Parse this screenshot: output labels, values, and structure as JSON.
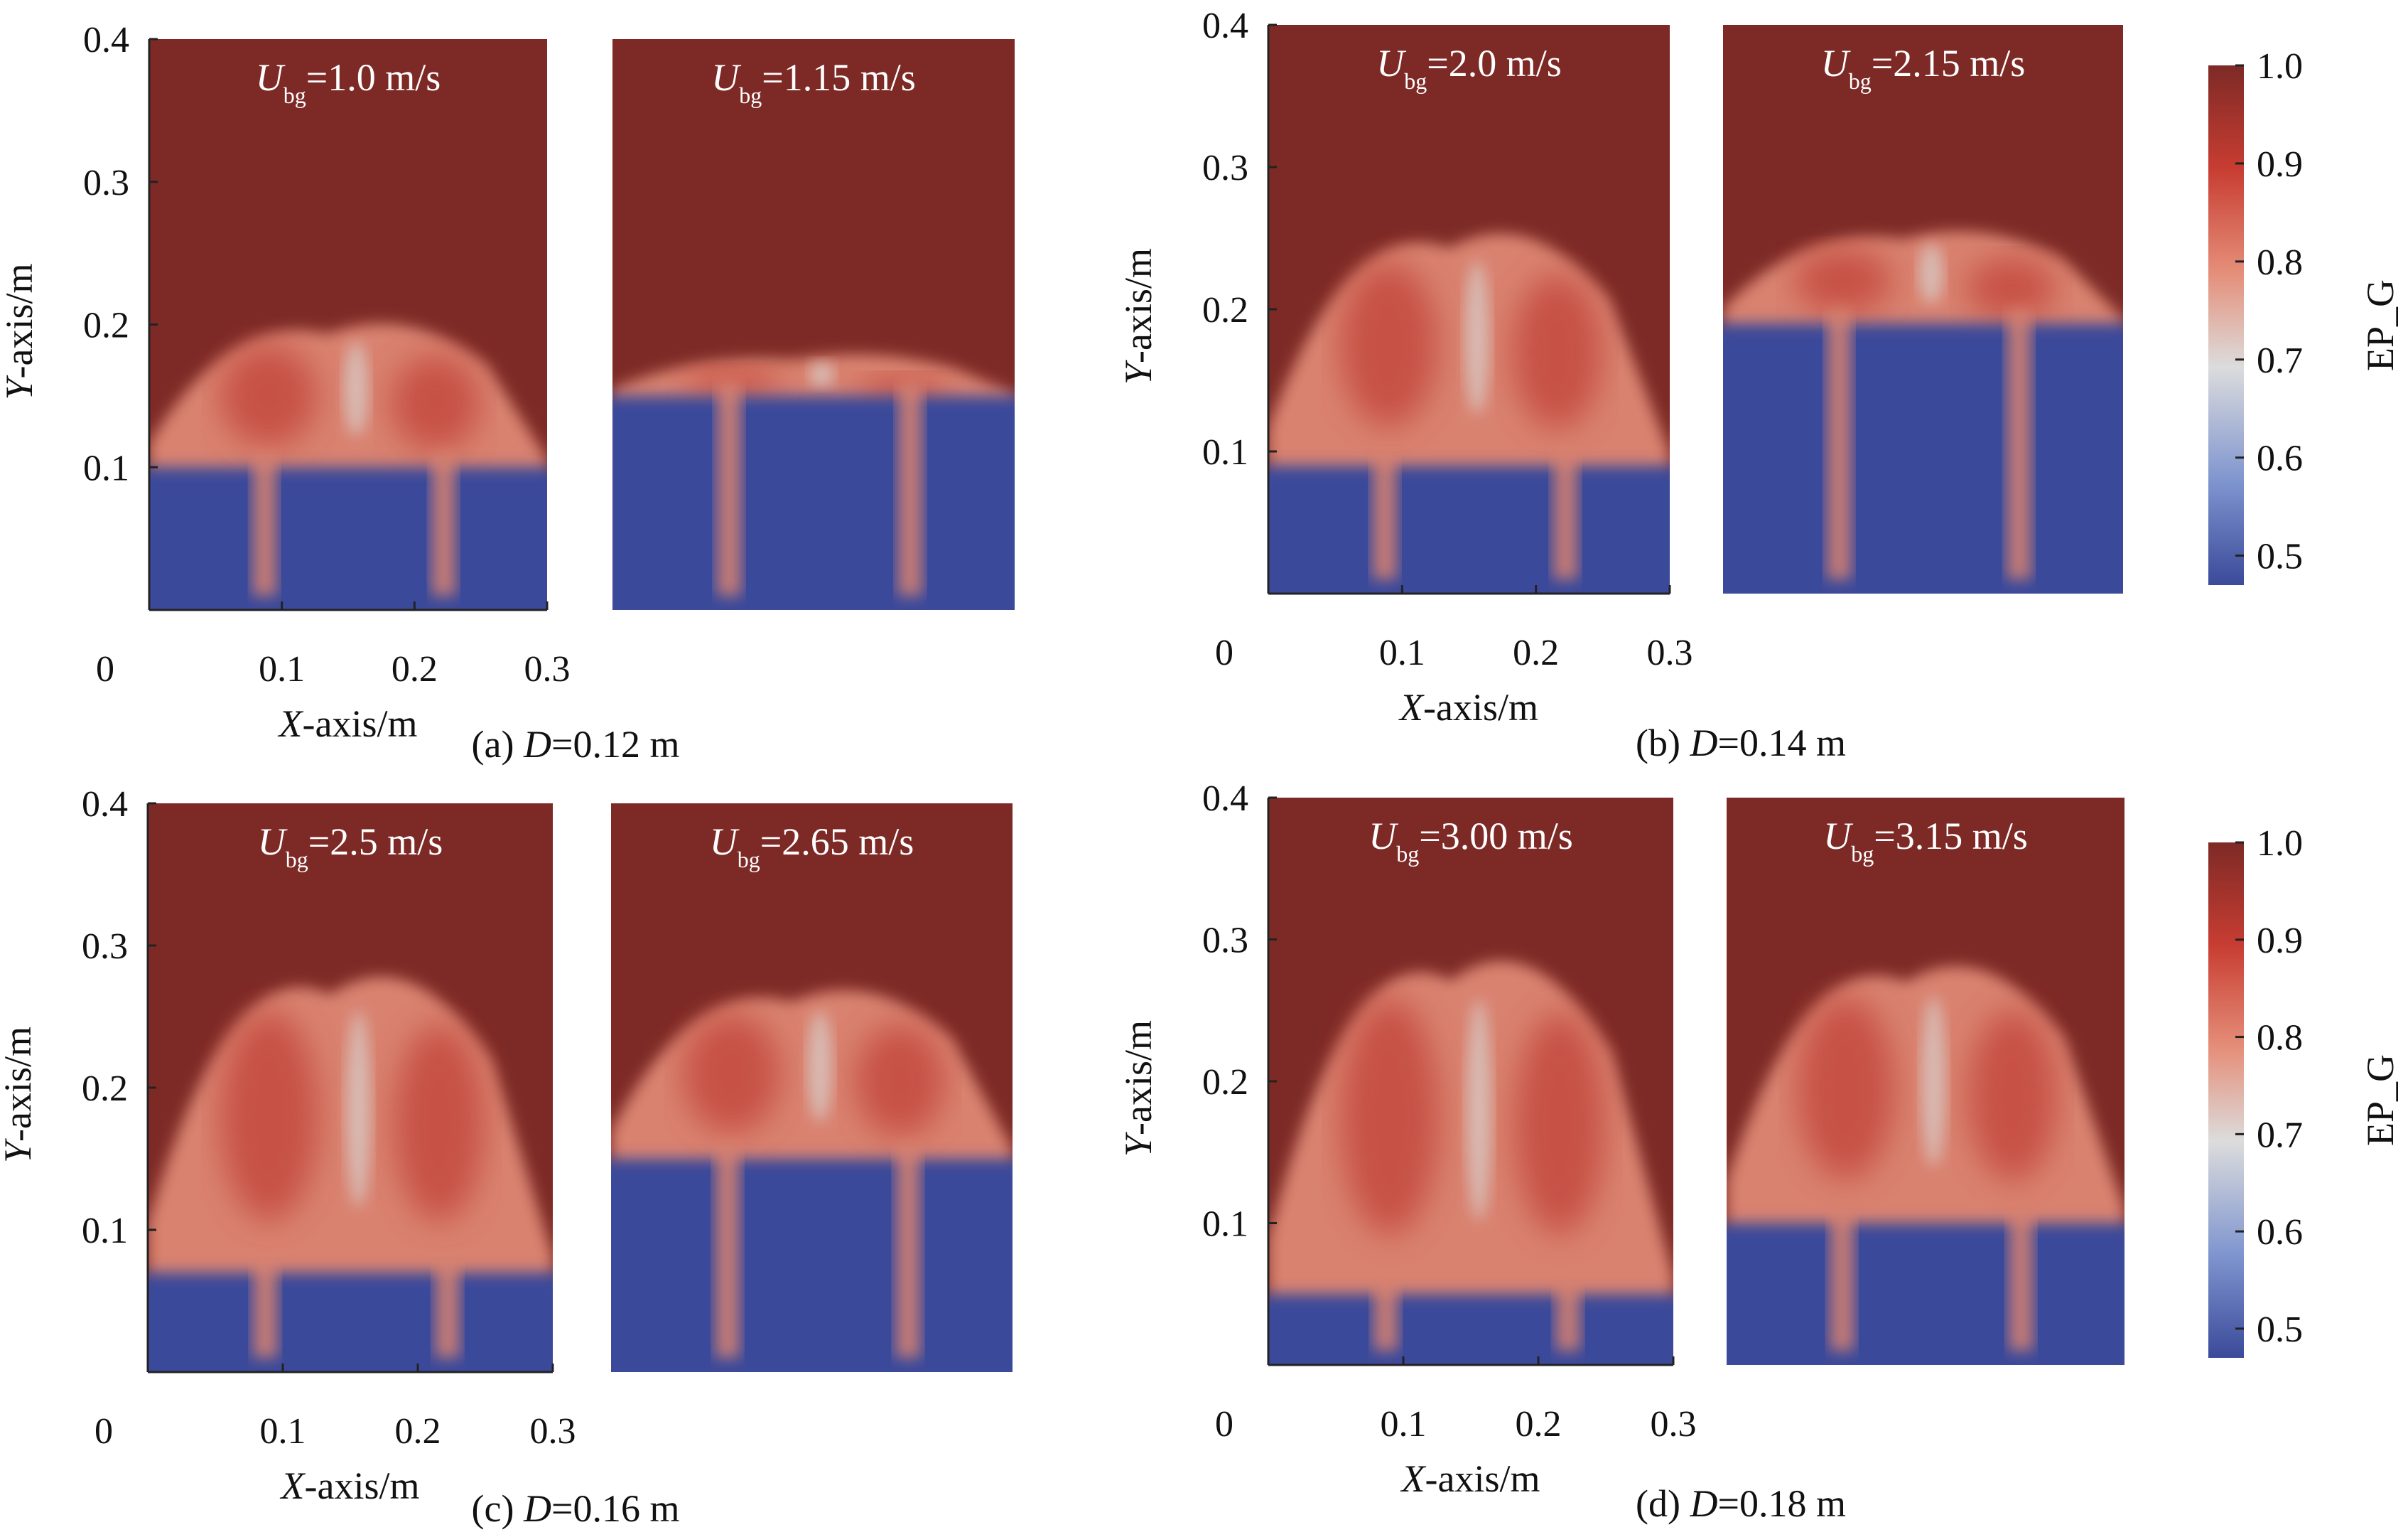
{
  "colorbar": {
    "label": "EP_G",
    "min": 0.47,
    "max": 1.0,
    "ticks": [
      "1.0",
      "0.9",
      "0.8",
      "0.7",
      "0.6",
      "0.5"
    ],
    "colors": [
      "#3b4a9a",
      "#7f95cf",
      "#dcdcdc",
      "#e58f7a",
      "#c83d32",
      "#7d2a26"
    ]
  },
  "axis_text": {
    "x_label_italic": "X",
    "y_label_italic": "Y",
    "label_suffix": "-axis/m",
    "u_symbol": "U",
    "u_subscript": "bg"
  },
  "chart_data": [
    {
      "type": "heatmap",
      "caption_prefix": "(a) ",
      "caption_var": "D",
      "caption_value": "=0.12 m",
      "x_ticks": [
        "0",
        "0.1",
        "0.2",
        "0.3"
      ],
      "y_ticks": [
        "0.1",
        "0.2",
        "0.3",
        "0.4"
      ],
      "xlim": [
        0,
        0.3
      ],
      "ylim": [
        0,
        0.4
      ],
      "panels": [
        {
          "velocity": "=1.0 m/s",
          "bed_height_m": 0.1,
          "bubble_top_m": 0.21
        },
        {
          "velocity": "=1.15 m/s",
          "bed_height_m": 0.15,
          "bubble_top_m": 0.18
        }
      ]
    },
    {
      "type": "heatmap",
      "caption_prefix": "(b) ",
      "caption_var": "D",
      "caption_value": "=0.14 m",
      "x_ticks": [
        "0",
        "0.1",
        "0.2",
        "0.3"
      ],
      "y_ticks": [
        "0.1",
        "0.2",
        "0.3",
        "0.4"
      ],
      "xlim": [
        0,
        0.3
      ],
      "ylim": [
        0,
        0.4
      ],
      "panels": [
        {
          "velocity": "=2.0 m/s",
          "bed_height_m": 0.09,
          "bubble_top_m": 0.27
        },
        {
          "velocity": "=2.15 m/s",
          "bed_height_m": 0.19,
          "bubble_top_m": 0.26
        }
      ]
    },
    {
      "type": "heatmap",
      "caption_prefix": "(c) ",
      "caption_var": "D",
      "caption_value": "=0.16 m",
      "x_ticks": [
        "0",
        "0.1",
        "0.2",
        "0.3"
      ],
      "y_ticks": [
        "0.1",
        "0.2",
        "0.3",
        "0.4"
      ],
      "xlim": [
        0,
        0.3
      ],
      "ylim": [
        0,
        0.4
      ],
      "panels": [
        {
          "velocity": "=2.5 m/s",
          "bed_height_m": 0.07,
          "bubble_top_m": 0.3
        },
        {
          "velocity": "=2.65 m/s",
          "bed_height_m": 0.15,
          "bubble_top_m": 0.28
        }
      ]
    },
    {
      "type": "heatmap",
      "caption_prefix": "(d) ",
      "caption_var": "D",
      "caption_value": "=0.18 m",
      "x_ticks": [
        "0",
        "0.1",
        "0.2",
        "0.3"
      ],
      "y_ticks": [
        "0.1",
        "0.2",
        "0.3",
        "0.4"
      ],
      "xlim": [
        0,
        0.3
      ],
      "ylim": [
        0,
        0.4
      ],
      "panels": [
        {
          "velocity": "=3.00 m/s",
          "bed_height_m": 0.05,
          "bubble_top_m": 0.31
        },
        {
          "velocity": "=3.15 m/s",
          "bed_height_m": 0.1,
          "bubble_top_m": 0.3
        }
      ]
    }
  ]
}
